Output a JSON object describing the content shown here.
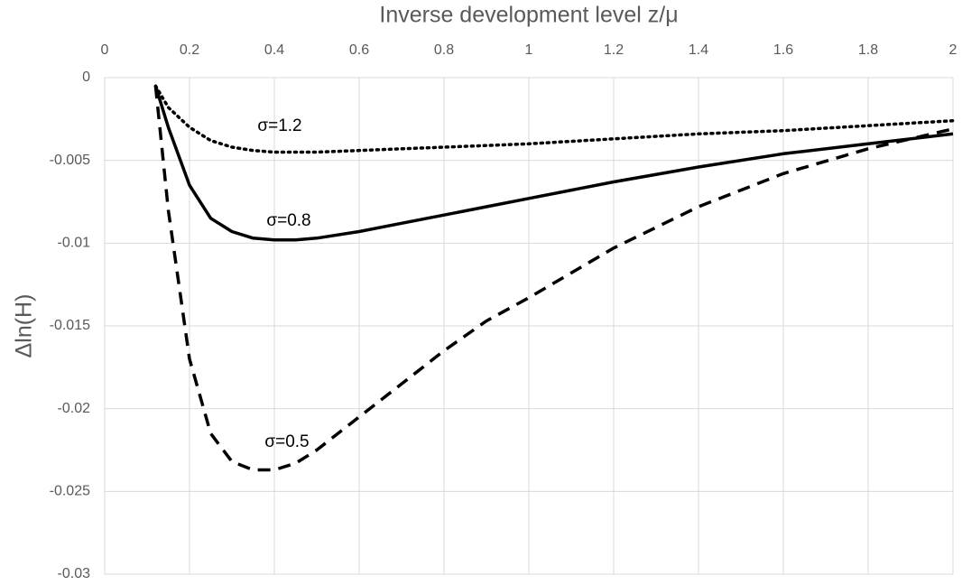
{
  "chart_data": {
    "type": "line",
    "x_label": "Inverse development level z/μ",
    "y_label": "Δln(H)",
    "x": [
      0.12,
      0.15,
      0.2,
      0.25,
      0.3,
      0.35,
      0.4,
      0.45,
      0.5,
      0.6,
      0.7,
      0.8,
      0.9,
      1.0,
      1.2,
      1.4,
      1.6,
      1.8,
      2.0
    ],
    "series": [
      {
        "name": "σ=1.2",
        "color": "#000000",
        "style": "dotted",
        "values": [
          -0.0005,
          -0.0018,
          -0.003,
          -0.0038,
          -0.0042,
          -0.0044,
          -0.0045,
          -0.0045,
          -0.0045,
          -0.0044,
          -0.0043,
          -0.0042,
          -0.0041,
          -0.004,
          -0.0037,
          -0.0034,
          -0.0032,
          -0.0029,
          -0.0026
        ]
      },
      {
        "name": "σ=0.8",
        "color": "#000000",
        "style": "solid",
        "values": [
          -0.0005,
          -0.003,
          -0.0065,
          -0.0085,
          -0.0093,
          -0.0097,
          -0.0098,
          -0.0098,
          -0.0097,
          -0.0093,
          -0.0088,
          -0.0083,
          -0.0078,
          -0.0073,
          -0.0063,
          -0.0054,
          -0.0046,
          -0.004,
          -0.0034
        ]
      },
      {
        "name": "σ=0.5",
        "color": "#000000",
        "style": "dashed",
        "values": [
          -0.0005,
          -0.008,
          -0.017,
          -0.0215,
          -0.0232,
          -0.0237,
          -0.0237,
          -0.0233,
          -0.0225,
          -0.0205,
          -0.0185,
          -0.0165,
          -0.0147,
          -0.0133,
          -0.0103,
          -0.0078,
          -0.0058,
          -0.0043,
          -0.0031
        ]
      }
    ],
    "xlim": [
      0,
      2
    ],
    "xticks": [
      0,
      0.2,
      0.4,
      0.6,
      0.8,
      1,
      1.2,
      1.4,
      1.6,
      1.8,
      2
    ],
    "ylim": [
      -0.03,
      0
    ],
    "yticks": [
      0,
      -0.005,
      -0.01,
      -0.015,
      -0.02,
      -0.025,
      -0.03
    ],
    "grid": true,
    "x_axis_position": "top"
  }
}
